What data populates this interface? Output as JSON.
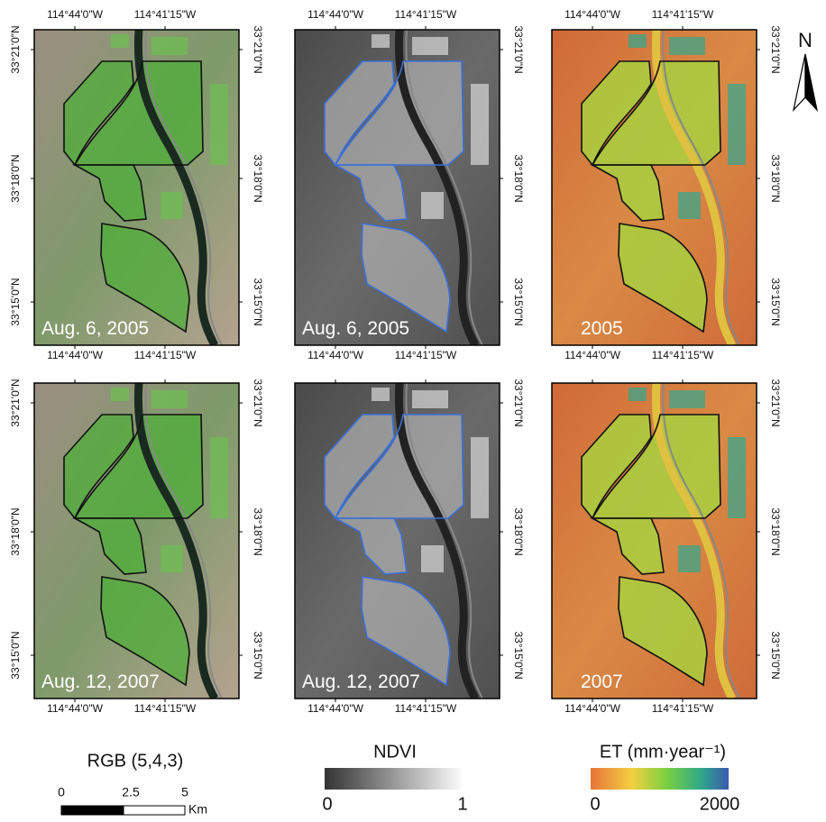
{
  "axes": {
    "lon_labels": [
      "114°44'0\"W",
      "114°41'15\"W"
    ],
    "lat_labels": [
      "33°21'0\"N",
      "33°18'0\"N",
      "33°15'0\"N"
    ]
  },
  "panels": [
    {
      "label": "Aug. 6, 2005"
    },
    {
      "label": "Aug. 6, 2005"
    },
    {
      "label": "2005"
    },
    {
      "label": "Aug. 12, 2007"
    },
    {
      "label": "Aug. 12, 2007"
    },
    {
      "label": "2007"
    }
  ],
  "legends": {
    "rgb": {
      "title": "RGB (5,4,3)"
    },
    "ndvi": {
      "title": "NDVI",
      "min": "0",
      "max": "1"
    },
    "et": {
      "title": "ET (mm·year⁻¹)",
      "min": "0",
      "max": "2000"
    }
  },
  "scale_bar": {
    "labels": [
      "0",
      "2.5",
      "5"
    ],
    "unit": "Km"
  },
  "north": "N"
}
